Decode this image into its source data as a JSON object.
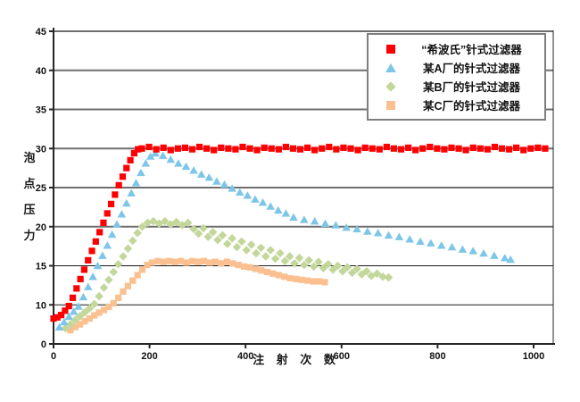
{
  "colors": {
    "series_red": "#FE0000",
    "series_blue": "#7EC6E8",
    "series_green": "#C4D79B",
    "series_orange": "#FAC090",
    "grid_major": "#6F6F6F",
    "grid_minor": "#1A1A1A",
    "axis": "#262626",
    "legend_border": "#7F7F7F",
    "background": "#FFFFFF"
  },
  "chart_data": {
    "type": "scatter",
    "title": "",
    "xlabel": "注 射 次 数",
    "ylabel": "泡\n点\n压\n力",
    "x_ticks": [
      0,
      200,
      400,
      600,
      800,
      1000
    ],
    "y_ticks": [
      0,
      10,
      15,
      20,
      25,
      30,
      35,
      40,
      45
    ],
    "xlim": [
      0,
      1040
    ],
    "ylim": [
      0,
      45
    ],
    "grid": "horizontal",
    "legend_position": "top-right",
    "y_scale_note": "y tick labels evenly spaced; 0-10 occupies one gridline gap (no 5 label)",
    "series": [
      {
        "name": "“希波氏”针式过滤器",
        "marker": "square",
        "color": "#FE0000",
        "points": [
          [
            0,
            6.5
          ],
          [
            8,
            6.8
          ],
          [
            16,
            7.4
          ],
          [
            24,
            8.5
          ],
          [
            32,
            9.7
          ],
          [
            40,
            10.9
          ],
          [
            48,
            12.1
          ],
          [
            56,
            13.3
          ],
          [
            64,
            14.5
          ],
          [
            72,
            15.7
          ],
          [
            80,
            16.9
          ],
          [
            88,
            18.1
          ],
          [
            96,
            19.3
          ],
          [
            104,
            20.5
          ],
          [
            112,
            21.7
          ],
          [
            120,
            22.9
          ],
          [
            128,
            24.1
          ],
          [
            136,
            25.3
          ],
          [
            144,
            26.4
          ],
          [
            152,
            27.5
          ],
          [
            160,
            28.5
          ],
          [
            168,
            29.4
          ],
          [
            176,
            29.9
          ],
          [
            184,
            30.0
          ],
          [
            199,
            30.2
          ],
          [
            214,
            29.9
          ],
          [
            229,
            30.1
          ],
          [
            244,
            29.8
          ],
          [
            259,
            30.0
          ],
          [
            274,
            30.1
          ],
          [
            289,
            29.9
          ],
          [
            304,
            30.2
          ],
          [
            319,
            30.0
          ],
          [
            334,
            29.8
          ],
          [
            349,
            30.1
          ],
          [
            364,
            30.0
          ],
          [
            379,
            29.9
          ],
          [
            394,
            30.2
          ],
          [
            409,
            30.0
          ],
          [
            424,
            29.8
          ],
          [
            439,
            30.1
          ],
          [
            454,
            30.0
          ],
          [
            469,
            29.9
          ],
          [
            484,
            30.2
          ],
          [
            499,
            30.0
          ],
          [
            514,
            29.9
          ],
          [
            529,
            30.1
          ],
          [
            544,
            29.8
          ],
          [
            559,
            30.0
          ],
          [
            574,
            30.2
          ],
          [
            589,
            29.9
          ],
          [
            604,
            30.1
          ],
          [
            619,
            30.0
          ],
          [
            634,
            29.8
          ],
          [
            649,
            30.1
          ],
          [
            664,
            30.0
          ],
          [
            679,
            29.9
          ],
          [
            694,
            30.2
          ],
          [
            709,
            30.0
          ],
          [
            724,
            29.9
          ],
          [
            739,
            30.1
          ],
          [
            754,
            29.8
          ],
          [
            769,
            30.0
          ],
          [
            784,
            30.2
          ],
          [
            799,
            30.0
          ],
          [
            814,
            29.9
          ],
          [
            829,
            30.1
          ],
          [
            844,
            30.0
          ],
          [
            859,
            29.8
          ],
          [
            874,
            30.1
          ],
          [
            889,
            30.0
          ],
          [
            904,
            29.9
          ],
          [
            919,
            30.2
          ],
          [
            934,
            30.0
          ],
          [
            949,
            29.9
          ],
          [
            964,
            30.1
          ],
          [
            979,
            29.8
          ],
          [
            994,
            30.0
          ],
          [
            1009,
            30.1
          ],
          [
            1024,
            30.0
          ]
        ]
      },
      {
        "name": "某A厂的针式过滤器",
        "marker": "triangle",
        "color": "#7EC6E8",
        "points": [
          [
            12,
            4.3
          ],
          [
            22,
            5.6
          ],
          [
            32,
            7.0
          ],
          [
            42,
            8.3
          ],
          [
            52,
            9.6
          ],
          [
            62,
            11.0
          ],
          [
            72,
            12.3
          ],
          [
            82,
            13.6
          ],
          [
            92,
            15.0
          ],
          [
            102,
            16.3
          ],
          [
            112,
            17.6
          ],
          [
            122,
            19.0
          ],
          [
            132,
            20.3
          ],
          [
            142,
            21.6
          ],
          [
            152,
            23.0
          ],
          [
            162,
            24.3
          ],
          [
            172,
            25.6
          ],
          [
            182,
            26.9
          ],
          [
            192,
            28.1
          ],
          [
            202,
            29.0
          ],
          [
            212,
            29.4
          ],
          [
            228,
            29.1
          ],
          [
            244,
            28.6
          ],
          [
            260,
            28.1
          ],
          [
            276,
            27.7
          ],
          [
            292,
            27.2
          ],
          [
            308,
            26.7
          ],
          [
            324,
            26.3
          ],
          [
            340,
            25.8
          ],
          [
            356,
            25.4
          ],
          [
            372,
            24.9
          ],
          [
            388,
            24.4
          ],
          [
            404,
            24.0
          ],
          [
            420,
            23.5
          ],
          [
            436,
            23.1
          ],
          [
            452,
            22.6
          ],
          [
            468,
            22.1
          ],
          [
            484,
            21.7
          ],
          [
            500,
            21.2
          ],
          [
            522,
            20.9
          ],
          [
            544,
            20.7
          ],
          [
            566,
            20.4
          ],
          [
            588,
            20.2
          ],
          [
            610,
            19.9
          ],
          [
            632,
            19.7
          ],
          [
            654,
            19.4
          ],
          [
            676,
            19.2
          ],
          [
            698,
            18.9
          ],
          [
            720,
            18.7
          ],
          [
            742,
            18.4
          ],
          [
            764,
            18.1
          ],
          [
            786,
            17.9
          ],
          [
            808,
            17.6
          ],
          [
            830,
            17.4
          ],
          [
            852,
            17.1
          ],
          [
            874,
            16.9
          ],
          [
            896,
            16.6
          ],
          [
            918,
            16.3
          ],
          [
            940,
            16.0
          ],
          [
            952,
            15.8
          ]
        ]
      },
      {
        "name": "某B厂的针式过滤器",
        "marker": "diamond",
        "color": "#C4D79B",
        "points": [
          [
            25,
            4.0
          ],
          [
            35,
            5.0
          ],
          [
            45,
            6.1
          ],
          [
            55,
            7.1
          ],
          [
            65,
            8.1
          ],
          [
            75,
            9.1
          ],
          [
            85,
            10.1
          ],
          [
            95,
            11.1
          ],
          [
            105,
            12.2
          ],
          [
            115,
            13.2
          ],
          [
            125,
            14.2
          ],
          [
            135,
            15.2
          ],
          [
            145,
            16.2
          ],
          [
            155,
            17.2
          ],
          [
            165,
            18.2
          ],
          [
            175,
            19.2
          ],
          [
            185,
            20.0
          ],
          [
            196,
            20.5
          ],
          [
            208,
            20.7
          ],
          [
            220,
            20.4
          ],
          [
            232,
            20.7
          ],
          [
            244,
            20.3
          ],
          [
            256,
            20.6
          ],
          [
            268,
            20.2
          ],
          [
            280,
            20.5
          ],
          [
            292,
            19.7
          ],
          [
            302,
            19.1
          ],
          [
            312,
            19.8
          ],
          [
            322,
            18.7
          ],
          [
            332,
            19.3
          ],
          [
            342,
            18.3
          ],
          [
            352,
            18.9
          ],
          [
            362,
            17.8
          ],
          [
            372,
            18.5
          ],
          [
            382,
            17.4
          ],
          [
            392,
            18.1
          ],
          [
            402,
            17.0
          ],
          [
            412,
            17.7
          ],
          [
            422,
            16.6
          ],
          [
            432,
            17.3
          ],
          [
            442,
            16.2
          ],
          [
            452,
            17.0
          ],
          [
            462,
            15.9
          ],
          [
            472,
            16.6
          ],
          [
            482,
            15.6
          ],
          [
            492,
            16.2
          ],
          [
            502,
            15.3
          ],
          [
            512,
            16.0
          ],
          [
            522,
            15.1
          ],
          [
            532,
            15.7
          ],
          [
            542,
            14.9
          ],
          [
            552,
            15.5
          ],
          [
            562,
            14.7
          ],
          [
            572,
            15.2
          ],
          [
            582,
            14.5
          ],
          [
            592,
            15.0
          ],
          [
            602,
            14.3
          ],
          [
            612,
            14.8
          ],
          [
            622,
            14.1
          ],
          [
            632,
            14.6
          ],
          [
            642,
            13.9
          ],
          [
            652,
            14.3
          ],
          [
            662,
            13.7
          ],
          [
            674,
            14.0
          ],
          [
            686,
            13.6
          ],
          [
            698,
            13.5
          ]
        ]
      },
      {
        "name": "某C厂的针式过滤器",
        "marker": "square",
        "color": "#FAC090",
        "points": [
          [
            35,
            3.5
          ],
          [
            45,
            4.3
          ],
          [
            55,
            5.0
          ],
          [
            65,
            5.8
          ],
          [
            75,
            6.5
          ],
          [
            85,
            7.3
          ],
          [
            95,
            8.0
          ],
          [
            105,
            8.7
          ],
          [
            115,
            9.5
          ],
          [
            125,
            10.2
          ],
          [
            135,
            10.9
          ],
          [
            145,
            11.7
          ],
          [
            155,
            12.4
          ],
          [
            165,
            13.1
          ],
          [
            175,
            13.8
          ],
          [
            185,
            14.5
          ],
          [
            195,
            15.1
          ],
          [
            205,
            15.4
          ],
          [
            217,
            15.6
          ],
          [
            229,
            15.5
          ],
          [
            241,
            15.6
          ],
          [
            253,
            15.5
          ],
          [
            265,
            15.6
          ],
          [
            277,
            15.4
          ],
          [
            289,
            15.6
          ],
          [
            301,
            15.5
          ],
          [
            313,
            15.6
          ],
          [
            325,
            15.4
          ],
          [
            337,
            15.5
          ],
          [
            349,
            15.3
          ],
          [
            361,
            15.5
          ],
          [
            373,
            15.3
          ],
          [
            385,
            15.1
          ],
          [
            397,
            14.9
          ],
          [
            409,
            14.8
          ],
          [
            421,
            14.6
          ],
          [
            433,
            14.4
          ],
          [
            445,
            14.2
          ],
          [
            457,
            14.0
          ],
          [
            469,
            13.8
          ],
          [
            481,
            13.6
          ],
          [
            493,
            13.4
          ],
          [
            505,
            13.3
          ],
          [
            517,
            13.2
          ],
          [
            529,
            13.1
          ],
          [
            541,
            13.0
          ],
          [
            553,
            13.0
          ],
          [
            565,
            12.9
          ]
        ]
      }
    ]
  }
}
